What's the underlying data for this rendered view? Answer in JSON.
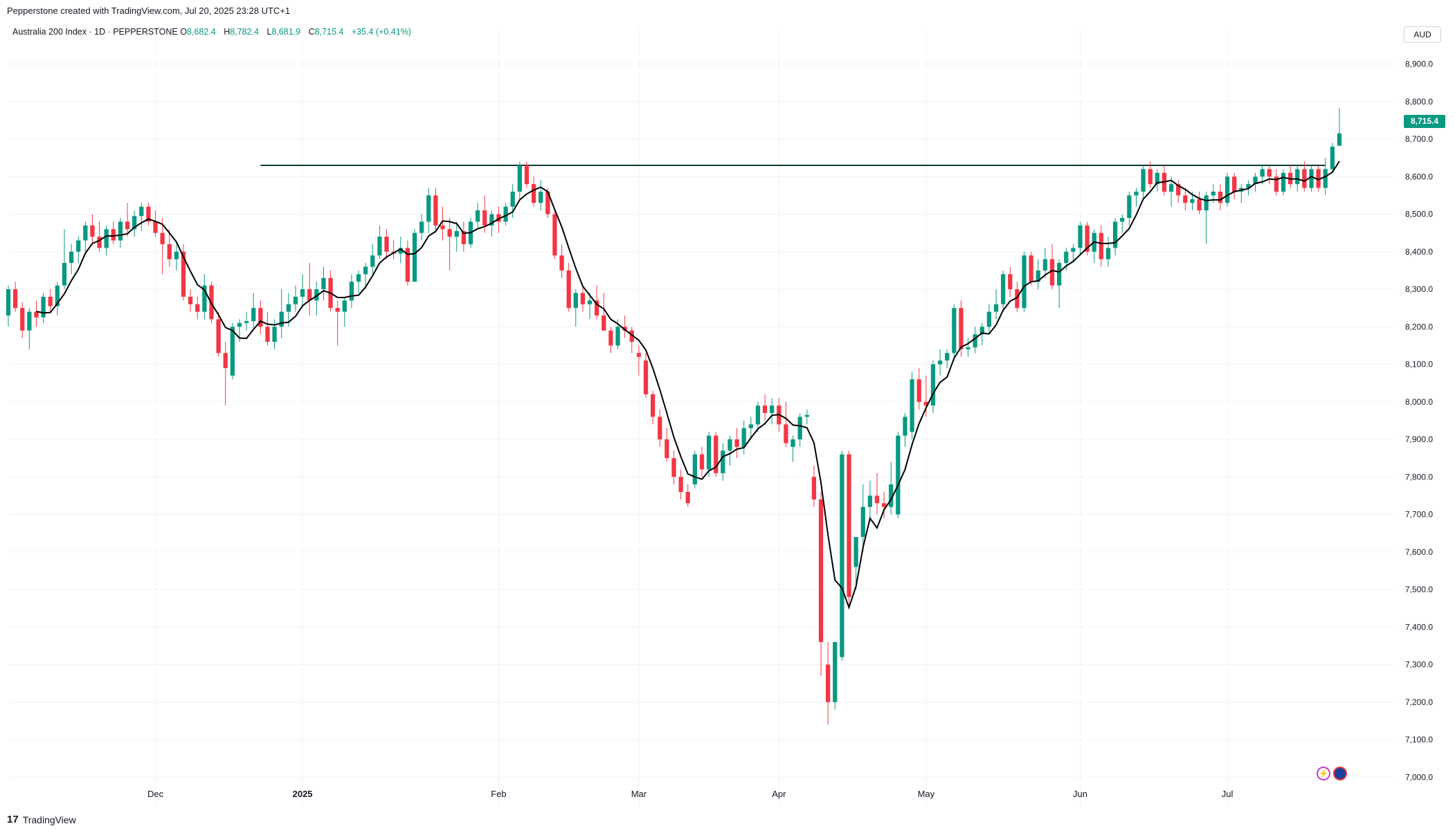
{
  "header": {
    "attribution": "Pepperstone created with TradingView.com, Jul 20, 2025 23:28 UTC+1"
  },
  "legend": {
    "symbol": "Australia 200 Index · 1D · PEPPERSTONE",
    "o_label": "O",
    "o_value": "8,682.4",
    "h_label": "H",
    "h_value": "8,782.4",
    "l_label": "L",
    "l_value": "8,681.9",
    "c_label": "C",
    "c_value": "8,715.4",
    "change": "+35.4 (+0.41%)"
  },
  "axis": {
    "currency": "AUD",
    "last_price_label": "8,715.4"
  },
  "footer": {
    "brand": "TradingView"
  },
  "colors": {
    "up": "#089981",
    "down": "#f23645",
    "ma": "#000000",
    "resistance": "#0b3b2e",
    "grid": "#f0f3fa"
  },
  "icons": [
    "lightning-icon",
    "australia-flag-icon",
    "tradingview-logo-icon"
  ],
  "chart_data": {
    "type": "candlestick",
    "title": "Australia 200 Index · 1D · PEPPERSTONE",
    "ylim": [
      6960,
      8960
    ],
    "y_ticks": [
      7000,
      7100,
      7200,
      7300,
      7400,
      7500,
      7600,
      7700,
      7800,
      7900,
      8000,
      8100,
      8200,
      8300,
      8400,
      8500,
      8600,
      8700,
      8800,
      8900
    ],
    "y_tick_labels": [
      "7,000.0",
      "7,100.0",
      "7,200.0",
      "7,300.0",
      "7,400.0",
      "7,500.0",
      "7,600.0",
      "7,700.0",
      "7,800.0",
      "7,900.0",
      "8,000.0",
      "8,100.0",
      "8,200.0",
      "8,300.0",
      "8,400.0",
      "8,500.0",
      "8,600.0",
      "8,700.0",
      "8,800.0",
      "8,900.0"
    ],
    "x_tick_labels": [
      {
        "label": "Dec",
        "index": 21
      },
      {
        "label": "2025",
        "index": 42
      },
      {
        "label": "Feb",
        "index": 70
      },
      {
        "label": "Mar",
        "index": 90
      },
      {
        "label": "Apr",
        "index": 110
      },
      {
        "label": "May",
        "index": 131
      },
      {
        "label": "Jun",
        "index": 153
      },
      {
        "label": "Jul",
        "index": 174
      }
    ],
    "resistance_level": 8630,
    "resistance_span": [
      36,
      188
    ],
    "moving_average": "black line",
    "grid": true,
    "candles": [
      {
        "o": 8230,
        "h": 8310,
        "l": 8200,
        "c": 8300
      },
      {
        "o": 8300,
        "h": 8320,
        "l": 8240,
        "c": 8250
      },
      {
        "o": 8250,
        "h": 8265,
        "l": 8170,
        "c": 8190
      },
      {
        "o": 8190,
        "h": 8250,
        "l": 8140,
        "c": 8240
      },
      {
        "o": 8240,
        "h": 8270,
        "l": 8200,
        "c": 8225
      },
      {
        "o": 8225,
        "h": 8290,
        "l": 8210,
        "c": 8280
      },
      {
        "o": 8280,
        "h": 8300,
        "l": 8240,
        "c": 8255
      },
      {
        "o": 8255,
        "h": 8320,
        "l": 8230,
        "c": 8310
      },
      {
        "o": 8310,
        "h": 8460,
        "l": 8300,
        "c": 8370
      },
      {
        "o": 8370,
        "h": 8420,
        "l": 8340,
        "c": 8400
      },
      {
        "o": 8400,
        "h": 8440,
        "l": 8370,
        "c": 8430
      },
      {
        "o": 8430,
        "h": 8480,
        "l": 8400,
        "c": 8470
      },
      {
        "o": 8470,
        "h": 8500,
        "l": 8420,
        "c": 8440
      },
      {
        "o": 8440,
        "h": 8480,
        "l": 8400,
        "c": 8410
      },
      {
        "o": 8410,
        "h": 8470,
        "l": 8390,
        "c": 8460
      },
      {
        "o": 8460,
        "h": 8480,
        "l": 8420,
        "c": 8430
      },
      {
        "o": 8430,
        "h": 8490,
        "l": 8410,
        "c": 8480
      },
      {
        "o": 8480,
        "h": 8530,
        "l": 8440,
        "c": 8460
      },
      {
        "o": 8460,
        "h": 8510,
        "l": 8440,
        "c": 8495
      },
      {
        "o": 8495,
        "h": 8530,
        "l": 8455,
        "c": 8520
      },
      {
        "o": 8520,
        "h": 8530,
        "l": 8470,
        "c": 8480
      },
      {
        "o": 8480,
        "h": 8510,
        "l": 8440,
        "c": 8450
      },
      {
        "o": 8450,
        "h": 8490,
        "l": 8340,
        "c": 8420
      },
      {
        "o": 8420,
        "h": 8460,
        "l": 8360,
        "c": 8380
      },
      {
        "o": 8380,
        "h": 8420,
        "l": 8350,
        "c": 8400
      },
      {
        "o": 8400,
        "h": 8420,
        "l": 8270,
        "c": 8280
      },
      {
        "o": 8280,
        "h": 8300,
        "l": 8240,
        "c": 8260
      },
      {
        "o": 8260,
        "h": 8280,
        "l": 8220,
        "c": 8240
      },
      {
        "o": 8240,
        "h": 8340,
        "l": 8220,
        "c": 8310
      },
      {
        "o": 8310,
        "h": 8320,
        "l": 8210,
        "c": 8220
      },
      {
        "o": 8220,
        "h": 8240,
        "l": 8120,
        "c": 8130
      },
      {
        "o": 8130,
        "h": 8160,
        "l": 7990,
        "c": 8090
      },
      {
        "o": 8070,
        "h": 8210,
        "l": 8060,
        "c": 8200
      },
      {
        "o": 8200,
        "h": 8220,
        "l": 8160,
        "c": 8210
      },
      {
        "o": 8210,
        "h": 8240,
        "l": 8190,
        "c": 8215
      },
      {
        "o": 8215,
        "h": 8290,
        "l": 8190,
        "c": 8250
      },
      {
        "o": 8250,
        "h": 8270,
        "l": 8180,
        "c": 8200
      },
      {
        "o": 8200,
        "h": 8240,
        "l": 8150,
        "c": 8160
      },
      {
        "o": 8160,
        "h": 8220,
        "l": 8140,
        "c": 8200
      },
      {
        "o": 8200,
        "h": 8300,
        "l": 8170,
        "c": 8240
      },
      {
        "o": 8240,
        "h": 8290,
        "l": 8200,
        "c": 8260
      },
      {
        "o": 8260,
        "h": 8310,
        "l": 8240,
        "c": 8280
      },
      {
        "o": 8280,
        "h": 8340,
        "l": 8250,
        "c": 8300
      },
      {
        "o": 8300,
        "h": 8370,
        "l": 8230,
        "c": 8270
      },
      {
        "o": 8270,
        "h": 8320,
        "l": 8230,
        "c": 8300
      },
      {
        "o": 8300,
        "h": 8360,
        "l": 8270,
        "c": 8330
      },
      {
        "o": 8330,
        "h": 8350,
        "l": 8240,
        "c": 8250
      },
      {
        "o": 8250,
        "h": 8270,
        "l": 8150,
        "c": 8240
      },
      {
        "o": 8240,
        "h": 8280,
        "l": 8200,
        "c": 8270
      },
      {
        "o": 8270,
        "h": 8340,
        "l": 8250,
        "c": 8320
      },
      {
        "o": 8320,
        "h": 8350,
        "l": 8290,
        "c": 8340
      },
      {
        "o": 8340,
        "h": 8370,
        "l": 8300,
        "c": 8360
      },
      {
        "o": 8360,
        "h": 8420,
        "l": 8340,
        "c": 8390
      },
      {
        "o": 8390,
        "h": 8470,
        "l": 8380,
        "c": 8440
      },
      {
        "o": 8440,
        "h": 8460,
        "l": 8380,
        "c": 8400
      },
      {
        "o": 8400,
        "h": 8430,
        "l": 8380,
        "c": 8395
      },
      {
        "o": 8395,
        "h": 8440,
        "l": 8370,
        "c": 8410
      },
      {
        "o": 8410,
        "h": 8430,
        "l": 8310,
        "c": 8320
      },
      {
        "o": 8320,
        "h": 8460,
        "l": 8320,
        "c": 8450
      },
      {
        "o": 8450,
        "h": 8500,
        "l": 8430,
        "c": 8480
      },
      {
        "o": 8480,
        "h": 8570,
        "l": 8450,
        "c": 8550
      },
      {
        "o": 8550,
        "h": 8570,
        "l": 8450,
        "c": 8470
      },
      {
        "o": 8470,
        "h": 8520,
        "l": 8430,
        "c": 8460
      },
      {
        "o": 8460,
        "h": 8490,
        "l": 8350,
        "c": 8440
      },
      {
        "o": 8440,
        "h": 8480,
        "l": 8400,
        "c": 8455
      },
      {
        "o": 8455,
        "h": 8480,
        "l": 8400,
        "c": 8420
      },
      {
        "o": 8420,
        "h": 8490,
        "l": 8410,
        "c": 8480
      },
      {
        "o": 8480,
        "h": 8530,
        "l": 8460,
        "c": 8510
      },
      {
        "o": 8510,
        "h": 8550,
        "l": 8450,
        "c": 8470
      },
      {
        "o": 8470,
        "h": 8510,
        "l": 8440,
        "c": 8500
      },
      {
        "o": 8500,
        "h": 8520,
        "l": 8450,
        "c": 8480
      },
      {
        "o": 8480,
        "h": 8530,
        "l": 8470,
        "c": 8520
      },
      {
        "o": 8520,
        "h": 8580,
        "l": 8490,
        "c": 8560
      },
      {
        "o": 8560,
        "h": 8640,
        "l": 8540,
        "c": 8630
      },
      {
        "o": 8630,
        "h": 8640,
        "l": 8570,
        "c": 8580
      },
      {
        "o": 8580,
        "h": 8600,
        "l": 8520,
        "c": 8530
      },
      {
        "o": 8530,
        "h": 8590,
        "l": 8510,
        "c": 8560
      },
      {
        "o": 8560,
        "h": 8570,
        "l": 8490,
        "c": 8500
      },
      {
        "o": 8500,
        "h": 8510,
        "l": 8380,
        "c": 8390
      },
      {
        "o": 8390,
        "h": 8420,
        "l": 8330,
        "c": 8350
      },
      {
        "o": 8350,
        "h": 8370,
        "l": 8240,
        "c": 8250
      },
      {
        "o": 8250,
        "h": 8300,
        "l": 8200,
        "c": 8290
      },
      {
        "o": 8290,
        "h": 8310,
        "l": 8240,
        "c": 8260
      },
      {
        "o": 8260,
        "h": 8290,
        "l": 8220,
        "c": 8270
      },
      {
        "o": 8270,
        "h": 8310,
        "l": 8220,
        "c": 8230
      },
      {
        "o": 8230,
        "h": 8290,
        "l": 8190,
        "c": 8190
      },
      {
        "o": 8190,
        "h": 8200,
        "l": 8130,
        "c": 8150
      },
      {
        "o": 8150,
        "h": 8220,
        "l": 8140,
        "c": 8200
      },
      {
        "o": 8200,
        "h": 8230,
        "l": 8170,
        "c": 8190
      },
      {
        "o": 8190,
        "h": 8200,
        "l": 8130,
        "c": 8160
      },
      {
        "o": 8130,
        "h": 8150,
        "l": 8070,
        "c": 8120
      },
      {
        "o": 8110,
        "h": 8130,
        "l": 8010,
        "c": 8020
      },
      {
        "o": 8020,
        "h": 8030,
        "l": 7940,
        "c": 7960
      },
      {
        "o": 7960,
        "h": 7980,
        "l": 7880,
        "c": 7900
      },
      {
        "o": 7900,
        "h": 7930,
        "l": 7840,
        "c": 7850
      },
      {
        "o": 7850,
        "h": 7870,
        "l": 7780,
        "c": 7800
      },
      {
        "o": 7800,
        "h": 7820,
        "l": 7740,
        "c": 7760
      },
      {
        "o": 7760,
        "h": 7780,
        "l": 7720,
        "c": 7730
      },
      {
        "o": 7780,
        "h": 7870,
        "l": 7770,
        "c": 7860
      },
      {
        "o": 7860,
        "h": 7880,
        "l": 7800,
        "c": 7820
      },
      {
        "o": 7820,
        "h": 7920,
        "l": 7800,
        "c": 7910
      },
      {
        "o": 7910,
        "h": 7920,
        "l": 7800,
        "c": 7810
      },
      {
        "o": 7810,
        "h": 7890,
        "l": 7790,
        "c": 7870
      },
      {
        "o": 7870,
        "h": 7910,
        "l": 7830,
        "c": 7900
      },
      {
        "o": 7900,
        "h": 7930,
        "l": 7850,
        "c": 7880
      },
      {
        "o": 7880,
        "h": 7950,
        "l": 7860,
        "c": 7930
      },
      {
        "o": 7930,
        "h": 7960,
        "l": 7900,
        "c": 7940
      },
      {
        "o": 7940,
        "h": 8000,
        "l": 7920,
        "c": 7990
      },
      {
        "o": 7990,
        "h": 8020,
        "l": 7950,
        "c": 7970
      },
      {
        "o": 7970,
        "h": 8010,
        "l": 7940,
        "c": 7990
      },
      {
        "o": 7990,
        "h": 8010,
        "l": 7920,
        "c": 7940
      },
      {
        "o": 7940,
        "h": 8000,
        "l": 7880,
        "c": 7890
      },
      {
        "o": 7880,
        "h": 7910,
        "l": 7840,
        "c": 7900
      },
      {
        "o": 7900,
        "h": 7970,
        "l": 7880,
        "c": 7960
      },
      {
        "o": 7960,
        "h": 7980,
        "l": 7940,
        "c": 7965
      },
      {
        "o": 7800,
        "h": 7830,
        "l": 7720,
        "c": 7740
      },
      {
        "o": 7740,
        "h": 7760,
        "l": 7270,
        "c": 7360
      },
      {
        "o": 7300,
        "h": 7360,
        "l": 7140,
        "c": 7200
      },
      {
        "o": 7200,
        "h": 7360,
        "l": 7180,
        "c": 7360
      },
      {
        "o": 7320,
        "h": 7870,
        "l": 7310,
        "c": 7860
      },
      {
        "o": 7860,
        "h": 7870,
        "l": 7460,
        "c": 7480
      },
      {
        "o": 7560,
        "h": 7640,
        "l": 7500,
        "c": 7640
      },
      {
        "o": 7640,
        "h": 7780,
        "l": 7600,
        "c": 7720
      },
      {
        "o": 7720,
        "h": 7790,
        "l": 7680,
        "c": 7750
      },
      {
        "o": 7750,
        "h": 7810,
        "l": 7700,
        "c": 7730
      },
      {
        "o": 7730,
        "h": 7760,
        "l": 7690,
        "c": 7720
      },
      {
        "o": 7720,
        "h": 7840,
        "l": 7700,
        "c": 7780
      },
      {
        "o": 7700,
        "h": 7920,
        "l": 7690,
        "c": 7910
      },
      {
        "o": 7910,
        "h": 7970,
        "l": 7880,
        "c": 7960
      },
      {
        "o": 7920,
        "h": 8080,
        "l": 7900,
        "c": 8060
      },
      {
        "o": 8060,
        "h": 8090,
        "l": 7980,
        "c": 8000
      },
      {
        "o": 8000,
        "h": 8070,
        "l": 7960,
        "c": 7990
      },
      {
        "o": 7990,
        "h": 8110,
        "l": 7970,
        "c": 8100
      },
      {
        "o": 8100,
        "h": 8140,
        "l": 8070,
        "c": 8110
      },
      {
        "o": 8110,
        "h": 8140,
        "l": 8090,
        "c": 8130
      },
      {
        "o": 8130,
        "h": 8260,
        "l": 8110,
        "c": 8250
      },
      {
        "o": 8250,
        "h": 8270,
        "l": 8120,
        "c": 8140
      },
      {
        "o": 8140,
        "h": 8170,
        "l": 8120,
        "c": 8145
      },
      {
        "o": 8145,
        "h": 8200,
        "l": 8130,
        "c": 8180
      },
      {
        "o": 8180,
        "h": 8210,
        "l": 8150,
        "c": 8200
      },
      {
        "o": 8200,
        "h": 8260,
        "l": 8180,
        "c": 8240
      },
      {
        "o": 8240,
        "h": 8300,
        "l": 8220,
        "c": 8260
      },
      {
        "o": 8260,
        "h": 8350,
        "l": 8240,
        "c": 8340
      },
      {
        "o": 8340,
        "h": 8360,
        "l": 8280,
        "c": 8300
      },
      {
        "o": 8300,
        "h": 8320,
        "l": 8240,
        "c": 8250
      },
      {
        "o": 8250,
        "h": 8400,
        "l": 8240,
        "c": 8390
      },
      {
        "o": 8390,
        "h": 8400,
        "l": 8310,
        "c": 8320
      },
      {
        "o": 8320,
        "h": 8380,
        "l": 8300,
        "c": 8350
      },
      {
        "o": 8350,
        "h": 8410,
        "l": 8330,
        "c": 8380
      },
      {
        "o": 8380,
        "h": 8420,
        "l": 8300,
        "c": 8310
      },
      {
        "o": 8310,
        "h": 8380,
        "l": 8250,
        "c": 8370
      },
      {
        "o": 8370,
        "h": 8410,
        "l": 8350,
        "c": 8400
      },
      {
        "o": 8400,
        "h": 8420,
        "l": 8370,
        "c": 8410
      },
      {
        "o": 8410,
        "h": 8480,
        "l": 8390,
        "c": 8470
      },
      {
        "o": 8470,
        "h": 8480,
        "l": 8390,
        "c": 8400
      },
      {
        "o": 8400,
        "h": 8460,
        "l": 8370,
        "c": 8450
      },
      {
        "o": 8450,
        "h": 8470,
        "l": 8360,
        "c": 8380
      },
      {
        "o": 8380,
        "h": 8440,
        "l": 8360,
        "c": 8410
      },
      {
        "o": 8410,
        "h": 8490,
        "l": 8390,
        "c": 8480
      },
      {
        "o": 8480,
        "h": 8500,
        "l": 8450,
        "c": 8490
      },
      {
        "o": 8490,
        "h": 8560,
        "l": 8470,
        "c": 8550
      },
      {
        "o": 8550,
        "h": 8570,
        "l": 8520,
        "c": 8560
      },
      {
        "o": 8560,
        "h": 8630,
        "l": 8540,
        "c": 8620
      },
      {
        "o": 8620,
        "h": 8640,
        "l": 8570,
        "c": 8580
      },
      {
        "o": 8580,
        "h": 8620,
        "l": 8560,
        "c": 8610
      },
      {
        "o": 8610,
        "h": 8630,
        "l": 8550,
        "c": 8560
      },
      {
        "o": 8560,
        "h": 8600,
        "l": 8520,
        "c": 8580
      },
      {
        "o": 8580,
        "h": 8590,
        "l": 8530,
        "c": 8550
      },
      {
        "o": 8550,
        "h": 8570,
        "l": 8510,
        "c": 8530
      },
      {
        "o": 8530,
        "h": 8560,
        "l": 8510,
        "c": 8540
      },
      {
        "o": 8540,
        "h": 8560,
        "l": 8500,
        "c": 8510
      },
      {
        "o": 8510,
        "h": 8560,
        "l": 8420,
        "c": 8550
      },
      {
        "o": 8550,
        "h": 8580,
        "l": 8530,
        "c": 8560
      },
      {
        "o": 8560,
        "h": 8580,
        "l": 8510,
        "c": 8530
      },
      {
        "o": 8530,
        "h": 8610,
        "l": 8520,
        "c": 8600
      },
      {
        "o": 8600,
        "h": 8610,
        "l": 8540,
        "c": 8560
      },
      {
        "o": 8560,
        "h": 8580,
        "l": 8530,
        "c": 8570
      },
      {
        "o": 8570,
        "h": 8590,
        "l": 8550,
        "c": 8580
      },
      {
        "o": 8580,
        "h": 8610,
        "l": 8560,
        "c": 8600
      },
      {
        "o": 8600,
        "h": 8630,
        "l": 8580,
        "c": 8620
      },
      {
        "o": 8620,
        "h": 8630,
        "l": 8580,
        "c": 8600
      },
      {
        "o": 8600,
        "h": 8620,
        "l": 8550,
        "c": 8560
      },
      {
        "o": 8560,
        "h": 8620,
        "l": 8550,
        "c": 8610
      },
      {
        "o": 8610,
        "h": 8630,
        "l": 8570,
        "c": 8580
      },
      {
        "o": 8580,
        "h": 8630,
        "l": 8560,
        "c": 8620
      },
      {
        "o": 8620,
        "h": 8640,
        "l": 8560,
        "c": 8570
      },
      {
        "o": 8570,
        "h": 8630,
        "l": 8560,
        "c": 8620
      },
      {
        "o": 8620,
        "h": 8630,
        "l": 8560,
        "c": 8570
      },
      {
        "o": 8570,
        "h": 8650,
        "l": 8550,
        "c": 8620
      },
      {
        "o": 8620,
        "h": 8690,
        "l": 8610,
        "c": 8680
      },
      {
        "o": 8682.4,
        "h": 8782.4,
        "l": 8681.9,
        "c": 8715.4
      }
    ]
  }
}
